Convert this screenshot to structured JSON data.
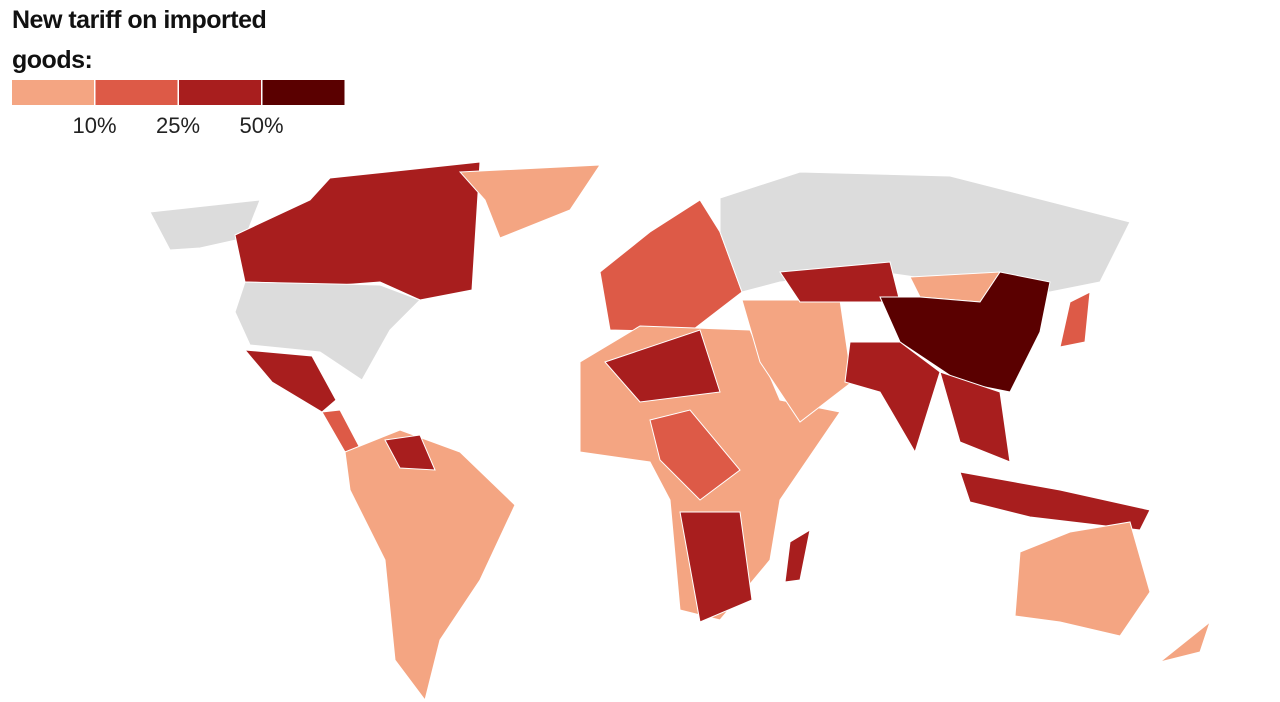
{
  "legend": {
    "title": "New tariff on imported goods:",
    "colors": [
      "#f4a582",
      "#dd5a47",
      "#a81e1e",
      "#5a0000"
    ],
    "labels": [
      "10%",
      "25%",
      "50%"
    ]
  }
}
